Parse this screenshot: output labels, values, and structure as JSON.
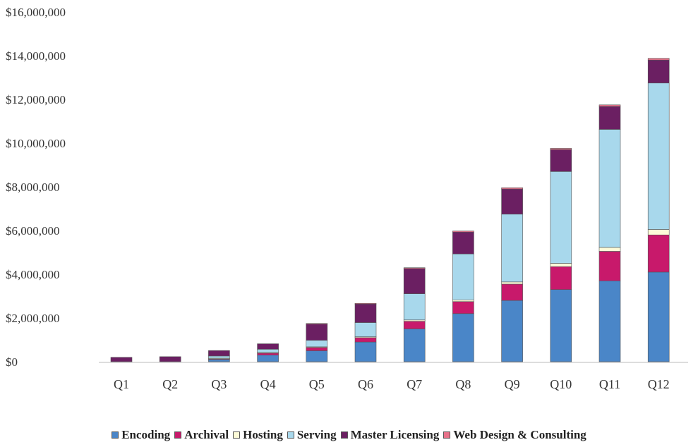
{
  "chart_data": {
    "type": "bar",
    "stacked": true,
    "categories": [
      "Q1",
      "Q2",
      "Q3",
      "Q4",
      "Q5",
      "Q6",
      "Q7",
      "Q8",
      "Q9",
      "Q10",
      "Q11",
      "Q12"
    ],
    "ylim": [
      0,
      16000000
    ],
    "yticks": [
      0,
      2000000,
      4000000,
      6000000,
      8000000,
      10000000,
      12000000,
      14000000,
      16000000
    ],
    "ytick_labels": [
      "$0",
      "$2,000,000",
      "$4,000,000",
      "$6,000,000",
      "$8,000,000",
      "$10,000,000",
      "$12,000,000",
      "$14,000,000",
      "$16,000,000"
    ],
    "grid": false,
    "legend_position": "bottom",
    "series": [
      {
        "name": "Encoding",
        "color": "#4a86c8",
        "values": [
          0,
          0,
          100000,
          300000,
          500000,
          900000,
          1500000,
          2200000,
          2800000,
          3300000,
          3700000,
          4100000
        ]
      },
      {
        "name": "Archival",
        "color": "#c8196b",
        "values": [
          0,
          0,
          50000,
          100000,
          150000,
          200000,
          350000,
          550000,
          750000,
          1050000,
          1350000,
          1700000
        ]
      },
      {
        "name": "Hosting",
        "color": "#fdfbd8",
        "values": [
          0,
          0,
          10000,
          20000,
          30000,
          40000,
          60000,
          80000,
          100000,
          150000,
          180000,
          250000
        ]
      },
      {
        "name": "Serving",
        "color": "#a8d8ec",
        "values": [
          0,
          0,
          100000,
          150000,
          300000,
          650000,
          1200000,
          2100000,
          3100000,
          4200000,
          5400000,
          6700000
        ]
      },
      {
        "name": "Master Licensing",
        "color": "#6b1f62",
        "values": [
          200000,
          230000,
          250000,
          250000,
          750000,
          850000,
          1150000,
          1000000,
          1150000,
          1000000,
          1050000,
          1050000
        ]
      },
      {
        "name": "Web Design & Consulting",
        "color": "#e8728a",
        "values": [
          0,
          0,
          0,
          0,
          20000,
          30000,
          40000,
          50000,
          60000,
          60000,
          70000,
          80000
        ]
      }
    ]
  }
}
